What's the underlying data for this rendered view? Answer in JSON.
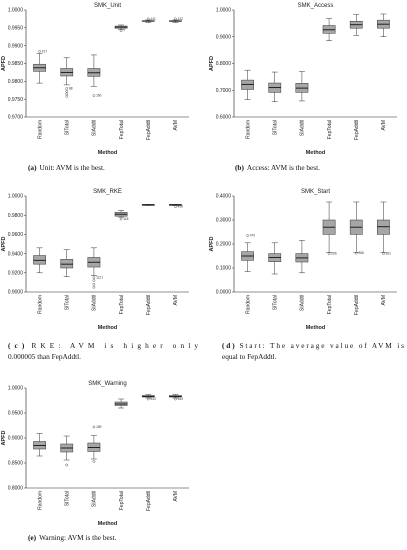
{
  "colors": {
    "box_fill": "#a6a6a6",
    "stroke": "#333333",
    "axis": "#222222",
    "background": "#ffffff"
  },
  "chart_data": [
    {
      "type": "box",
      "title": "SMK_Unit",
      "xlabel": "Method",
      "ylabel": "APFD",
      "ylim": [
        0.97,
        1.0
      ],
      "ticks": [
        "0.9700",
        "0.9750",
        "0.9800",
        "0.9850",
        "0.9900",
        "0.9950",
        "1.0000"
      ],
      "categories": [
        "Random",
        "SITotal",
        "SIAddtl",
        "FepTotal",
        "FepAddtl",
        "AVM"
      ],
      "boxes": [
        {
          "min": 0.9795,
          "q1": 0.9828,
          "median": 0.9838,
          "q3": 0.9848,
          "max": 0.9878
        },
        {
          "min": 0.979,
          "q1": 0.9815,
          "median": 0.9825,
          "q3": 0.9836,
          "max": 0.9866
        },
        {
          "min": 0.9786,
          "q1": 0.9814,
          "median": 0.9824,
          "q3": 0.9836,
          "max": 0.9874
        },
        {
          "min": 0.9946,
          "q1": 0.9949,
          "median": 0.9952,
          "q3": 0.9955,
          "max": 0.9958
        },
        {
          "min": 0.9965,
          "q1": 0.9968,
          "median": 0.9969,
          "q3": 0.997,
          "max": 0.9972
        },
        {
          "min": 0.9965,
          "q1": 0.9968,
          "median": 0.9969,
          "q3": 0.997,
          "max": 0.9972
        }
      ],
      "outliers": [
        {
          "i": 0,
          "values": [
            0.9884
          ],
          "label": "417"
        },
        {
          "i": 1,
          "values": [
            0.978,
            0.9772,
            0.9765,
            0.9758
          ],
          "label": "88"
        },
        {
          "i": 2,
          "values": [
            0.976
          ],
          "label": "160"
        },
        {
          "i": 3,
          "values": [
            0.9942
          ],
          "label": "7"
        },
        {
          "i": 4,
          "values": [
            0.9975
          ],
          "label": "141"
        },
        {
          "i": 5,
          "values": [
            0.9975
          ],
          "label": "142"
        }
      ],
      "caption_label": "(a)",
      "caption_text": "Unit: AVM is the best."
    },
    {
      "type": "box",
      "title": "SMK_Access",
      "xlabel": "Method",
      "ylabel": "APFD",
      "ylim": [
        0.6,
        1.0
      ],
      "ticks": [
        "0.6000",
        "0.7000",
        "0.8000",
        "0.9000",
        "1.0000"
      ],
      "categories": [
        "Random",
        "SITotal",
        "SIAddtl",
        "FepTotal",
        "FepAddtl",
        "AVM"
      ],
      "boxes": [
        {
          "min": 0.665,
          "q1": 0.703,
          "median": 0.722,
          "q3": 0.738,
          "max": 0.775
        },
        {
          "min": 0.657,
          "q1": 0.692,
          "median": 0.71,
          "q3": 0.727,
          "max": 0.768
        },
        {
          "min": 0.66,
          "q1": 0.692,
          "median": 0.708,
          "q3": 0.726,
          "max": 0.77
        },
        {
          "min": 0.885,
          "q1": 0.913,
          "median": 0.926,
          "q3": 0.942,
          "max": 0.968
        },
        {
          "min": 0.905,
          "q1": 0.932,
          "median": 0.945,
          "q3": 0.958,
          "max": 0.983
        },
        {
          "min": 0.9,
          "q1": 0.932,
          "median": 0.947,
          "q3": 0.962,
          "max": 0.985
        }
      ],
      "outliers": [],
      "caption_label": "(b)",
      "caption_text": "Access: AVM is the best."
    },
    {
      "type": "box",
      "title": "SMK_RKE",
      "xlabel": "Method",
      "ylabel": "APFD",
      "ylim": [
        0.9,
        1.0
      ],
      "ticks": [
        "0.9000",
        "0.9200",
        "0.9400",
        "0.9600",
        "0.9800",
        "1.0000"
      ],
      "categories": [
        "Random",
        "SITotal",
        "SIAddtl",
        "FepTotal",
        "FepAddtl",
        "AVM"
      ],
      "boxes": [
        {
          "min": 0.92,
          "q1": 0.929,
          "median": 0.933,
          "q3": 0.938,
          "max": 0.946
        },
        {
          "min": 0.916,
          "q1": 0.925,
          "median": 0.929,
          "q3": 0.934,
          "max": 0.944
        },
        {
          "min": 0.917,
          "q1": 0.926,
          "median": 0.931,
          "q3": 0.936,
          "max": 0.946
        },
        {
          "min": 0.978,
          "q1": 0.979,
          "median": 0.981,
          "q3": 0.983,
          "max": 0.985
        },
        {
          "min": 0.99,
          "q1": 0.99,
          "median": 0.991,
          "q3": 0.991,
          "max": 0.991
        },
        {
          "min": 0.99,
          "q1": 0.99,
          "median": 0.991,
          "q3": 0.991,
          "max": 0.991
        }
      ],
      "outliers": [
        {
          "i": 2,
          "values": [
            0.915,
            0.912,
            0.908,
            0.905
          ],
          "label": "1121"
        },
        {
          "i": 3,
          "values": [
            0.976
          ],
          "label": "118"
        },
        {
          "i": 5,
          "values": [
            0.989
          ],
          "label": "426"
        }
      ],
      "caption_label": "(c)",
      "caption_text": "RKE: AVM is higher only 0.000005 than FepAddtl."
    },
    {
      "type": "box",
      "title": "SMK_Start",
      "xlabel": "Method",
      "ylabel": "APFD",
      "ylim": [
        0.0,
        0.4
      ],
      "ticks": [
        "0.0000",
        "0.1000",
        "0.2000",
        "0.3000",
        "0.4000"
      ],
      "categories": [
        "Random",
        "SITotal",
        "SIAddtl",
        "FepTotal",
        "FepAddtl",
        "AVM"
      ],
      "boxes": [
        {
          "min": 0.085,
          "q1": 0.132,
          "median": 0.15,
          "q3": 0.168,
          "max": 0.205
        },
        {
          "min": 0.075,
          "q1": 0.126,
          "median": 0.144,
          "q3": 0.16,
          "max": 0.205
        },
        {
          "min": 0.08,
          "q1": 0.125,
          "median": 0.142,
          "q3": 0.16,
          "max": 0.215
        },
        {
          "min": 0.165,
          "q1": 0.24,
          "median": 0.27,
          "q3": 0.3,
          "max": 0.375
        },
        {
          "min": 0.165,
          "q1": 0.24,
          "median": 0.27,
          "q3": 0.3,
          "max": 0.375
        },
        {
          "min": 0.165,
          "q1": 0.24,
          "median": 0.272,
          "q3": 0.3,
          "max": 0.375
        }
      ],
      "outliers": [
        {
          "i": 0,
          "values": [
            0.235
          ],
          "label": "470"
        },
        {
          "i": 3,
          "values": [
            0.16
          ],
          "label": "266"
        },
        {
          "i": 4,
          "values": [
            0.162
          ],
          "label": "266"
        },
        {
          "i": 5,
          "values": [
            0.16
          ],
          "label": "261"
        }
      ],
      "caption_label": "(d)",
      "caption_text": "Start: The average value of AVM is equal to FepAddtl."
    },
    {
      "type": "box",
      "title": "SMK_Warning",
      "xlabel": "Method",
      "ylabel": "APFD",
      "ylim": [
        0.8,
        1.0
      ],
      "ticks": [
        "0.8000",
        "0.8500",
        "0.9000",
        "0.9500",
        "1.0000"
      ],
      "categories": [
        "Random",
        "SITotal",
        "SIAddtl",
        "FepTotal",
        "FepAddtl",
        "AVM"
      ],
      "boxes": [
        {
          "min": 0.864,
          "q1": 0.878,
          "median": 0.885,
          "q3": 0.893,
          "max": 0.909
        },
        {
          "min": 0.856,
          "q1": 0.872,
          "median": 0.88,
          "q3": 0.888,
          "max": 0.904
        },
        {
          "min": 0.858,
          "q1": 0.873,
          "median": 0.881,
          "q3": 0.89,
          "max": 0.905
        },
        {
          "min": 0.96,
          "q1": 0.965,
          "median": 0.968,
          "q3": 0.972,
          "max": 0.978
        },
        {
          "min": 0.98,
          "q1": 0.982,
          "median": 0.983,
          "q3": 0.985,
          "max": 0.987
        },
        {
          "min": 0.98,
          "q1": 0.982,
          "median": 0.983,
          "q3": 0.985,
          "max": 0.987
        }
      ],
      "outliers": [
        {
          "i": 1,
          "values": [
            0.846
          ],
          "label": ""
        },
        {
          "i": 2,
          "values": [
            0.922,
            0.853
          ],
          "label": "189"
        },
        {
          "i": 4,
          "values": [
            0.978
          ],
          "label": "543"
        },
        {
          "i": 5,
          "values": [
            0.978
          ],
          "label": "543"
        }
      ],
      "caption_label": "(e)",
      "caption_text": "Warning: AVM is the best."
    }
  ]
}
